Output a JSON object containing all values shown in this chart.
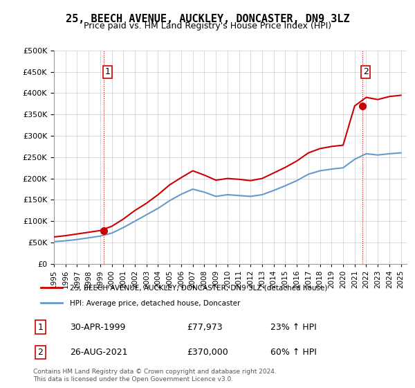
{
  "title": "25, BEECH AVENUE, AUCKLEY, DONCASTER, DN9 3LZ",
  "subtitle": "Price paid vs. HM Land Registry's House Price Index (HPI)",
  "legend_line1": "25, BEECH AVENUE, AUCKLEY, DONCASTER, DN9 3LZ (detached house)",
  "legend_line2": "HPI: Average price, detached house, Doncaster",
  "footnote": "Contains HM Land Registry data © Crown copyright and database right 2024.\nThis data is licensed under the Open Government Licence v3.0.",
  "annotation1_label": "1",
  "annotation1_date": "30-APR-1999",
  "annotation1_price": "£77,973",
  "annotation1_hpi": "23% ↑ HPI",
  "annotation2_label": "2",
  "annotation2_date": "26-AUG-2021",
  "annotation2_price": "£370,000",
  "annotation2_hpi": "60% ↑ HPI",
  "sale1_x": 1999.33,
  "sale1_y": 77973,
  "sale2_x": 2021.65,
  "sale2_y": 370000,
  "red_line_color": "#cc0000",
  "blue_line_color": "#6699cc",
  "marker_color": "#cc0000",
  "vline_color": "#cc0000",
  "grid_color": "#cccccc",
  "background_color": "#ffffff",
  "ylim": [
    0,
    500000
  ],
  "yticks": [
    0,
    50000,
    100000,
    150000,
    200000,
    250000,
    300000,
    350000,
    400000,
    450000,
    500000
  ],
  "xlim_start": 1995,
  "xlim_end": 2025.5,
  "hpi_years": [
    1995,
    1996,
    1997,
    1998,
    1999,
    2000,
    2001,
    2002,
    2003,
    2004,
    2005,
    2006,
    2007,
    2008,
    2009,
    2010,
    2011,
    2012,
    2013,
    2014,
    2015,
    2016,
    2017,
    2018,
    2019,
    2020,
    2021,
    2022,
    2023,
    2024,
    2025
  ],
  "hpi_values": [
    52000,
    54000,
    57000,
    61000,
    65000,
    72000,
    85000,
    100000,
    115000,
    130000,
    148000,
    163000,
    175000,
    168000,
    158000,
    162000,
    160000,
    158000,
    162000,
    172000,
    183000,
    195000,
    210000,
    218000,
    222000,
    225000,
    245000,
    258000,
    255000,
    258000,
    260000
  ],
  "red_years": [
    1995,
    1996,
    1997,
    1998,
    1999,
    2000,
    2001,
    2002,
    2003,
    2004,
    2005,
    2006,
    2007,
    2008,
    2009,
    2010,
    2011,
    2012,
    2013,
    2014,
    2015,
    2016,
    2017,
    2018,
    2019,
    2020,
    2021,
    2022,
    2023,
    2024,
    2025
  ],
  "red_values": [
    63000,
    66000,
    70000,
    74000,
    78000,
    88000,
    105000,
    125000,
    142000,
    162000,
    185000,
    202000,
    218000,
    208000,
    196000,
    200000,
    198000,
    195000,
    200000,
    213000,
    226000,
    241000,
    260000,
    270000,
    275000,
    278000,
    370000,
    390000,
    385000,
    392000,
    395000
  ]
}
